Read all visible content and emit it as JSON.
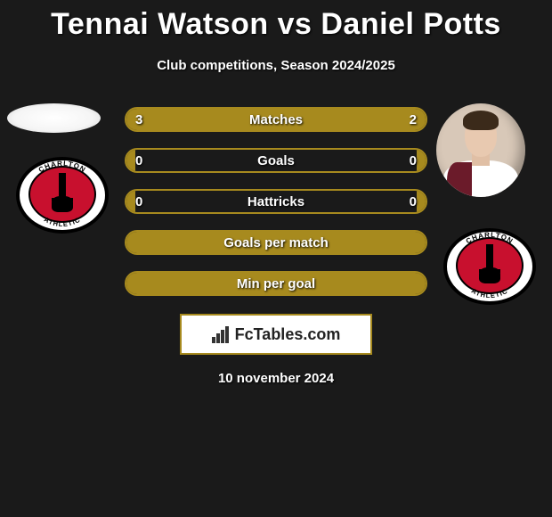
{
  "title": "Tennai Watson vs Daniel Potts",
  "subtitle": "Club competitions, Season 2024/2025",
  "date": "10 november 2024",
  "brand": "FcTables.com",
  "colors": {
    "bar_fill": "#a78a1e",
    "bar_border": "#a78a1e",
    "background": "#1a1a1a",
    "brand_box_bg": "#ffffff",
    "crest_red": "#c8102e",
    "text": "#ffffff"
  },
  "crest_name": "CHARLTON ATHLETIC",
  "stats": [
    {
      "label": "Matches",
      "left_val": "3",
      "right_val": "2",
      "left_pct": 60,
      "right_pct": 40
    },
    {
      "label": "Goals",
      "left_val": "0",
      "right_val": "0",
      "left_pct": 3,
      "right_pct": 3
    },
    {
      "label": "Hattricks",
      "left_val": "0",
      "right_val": "0",
      "left_pct": 3,
      "right_pct": 3
    },
    {
      "label": "Goals per match",
      "left_val": "",
      "right_val": "",
      "left_pct": 100,
      "right_pct": 0
    },
    {
      "label": "Min per goal",
      "left_val": "",
      "right_val": "",
      "left_pct": 100,
      "right_pct": 0
    }
  ]
}
